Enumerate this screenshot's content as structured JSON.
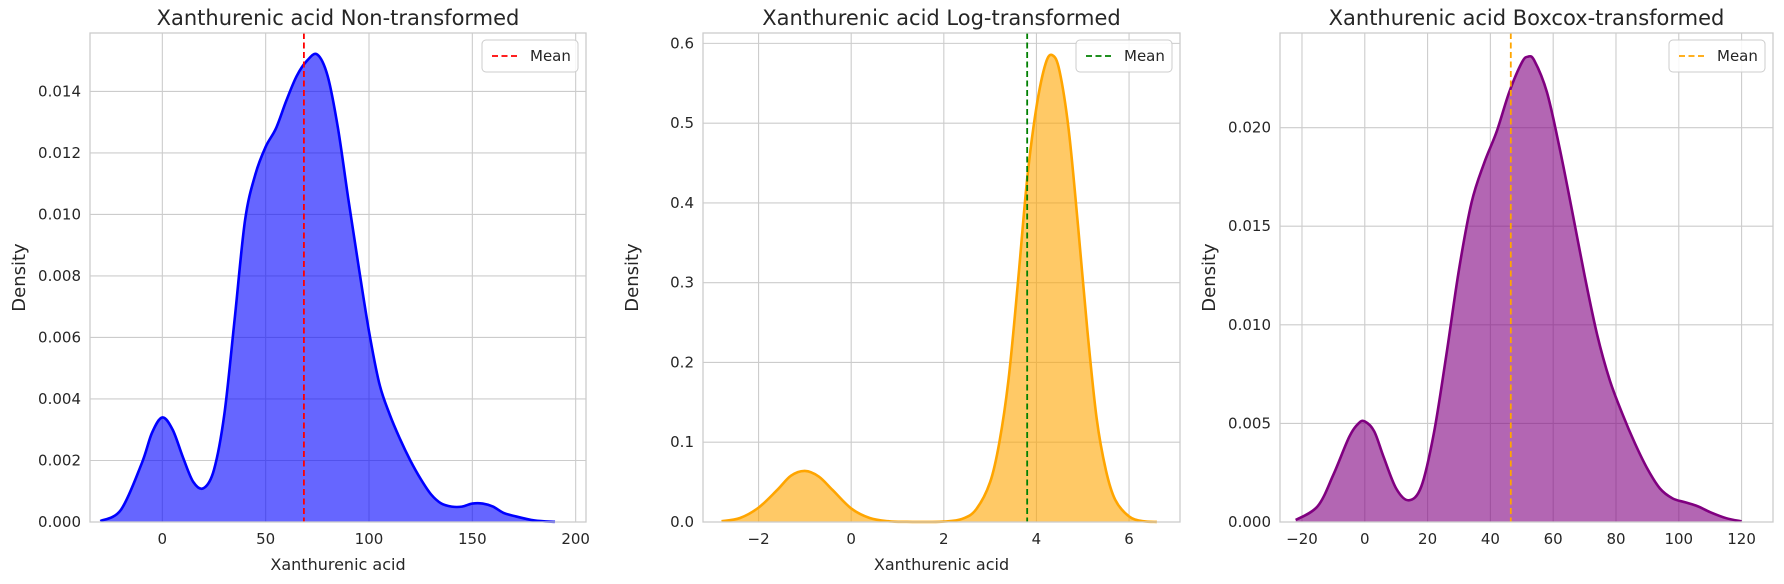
{
  "chart_data": [
    {
      "type": "area",
      "title": "Xanthurenic acid Non-transformed",
      "xlabel": "Xanthurenic acid",
      "ylabel": "Density",
      "xlim": [
        -35,
        205
      ],
      "ylim": [
        0,
        0.0159
      ],
      "xticks": [
        0,
        50,
        100,
        150,
        200
      ],
      "xtick_labels": [
        "0",
        "50",
        "100",
        "150",
        "200"
      ],
      "yticks": [
        0,
        0.002,
        0.004,
        0.006,
        0.008,
        0.01,
        0.012,
        0.014
      ],
      "ytick_labels": [
        "0.000",
        "0.002",
        "0.004",
        "0.006",
        "0.008",
        "0.010",
        "0.012",
        "0.014"
      ],
      "grid": true,
      "legend_position": "top-right",
      "series": [
        {
          "name": "",
          "color": "#0000ff",
          "fill_color": "#0000ff",
          "fill_opacity": 0.6,
          "x": [
            -30,
            -20,
            -10,
            -5,
            0,
            5,
            10,
            15,
            20,
            25,
            30,
            35,
            40,
            45,
            50,
            55,
            60,
            65,
            70,
            75,
            80,
            85,
            90,
            95,
            100,
            105,
            110,
            115,
            120,
            125,
            130,
            135,
            140,
            145,
            150,
            155,
            160,
            165,
            170,
            180,
            190
          ],
          "y": [
            3e-05,
            0.0004,
            0.0019,
            0.0029,
            0.0034,
            0.003,
            0.0021,
            0.0013,
            0.0011,
            0.0017,
            0.0035,
            0.0066,
            0.0098,
            0.0113,
            0.0122,
            0.0128,
            0.0137,
            0.0145,
            0.015,
            0.0152,
            0.0145,
            0.0128,
            0.0105,
            0.0083,
            0.0062,
            0.0045,
            0.0035,
            0.0027,
            0.002,
            0.0014,
            0.0009,
            0.0006,
            0.0005,
            0.0005,
            0.0006,
            0.0006,
            0.0005,
            0.0003,
            0.0002,
            5e-05,
            5e-06
          ]
        }
      ],
      "mean": {
        "label": "Mean",
        "value": 68.5,
        "color": "#ff0000"
      }
    },
    {
      "type": "area",
      "title": "Xanthurenic acid Log-transformed",
      "xlabel": "Xanthurenic acid",
      "ylabel": "Density",
      "xlim": [
        -3.2,
        7.1
      ],
      "ylim": [
        0,
        0.613
      ],
      "xticks": [
        -2,
        0,
        2,
        4,
        6
      ],
      "xtick_labels": [
        "−2",
        "0",
        "2",
        "4",
        "6"
      ],
      "yticks": [
        0,
        0.1,
        0.2,
        0.3,
        0.4,
        0.5,
        0.6
      ],
      "ytick_labels": [
        "0.0",
        "0.1",
        "0.2",
        "0.3",
        "0.4",
        "0.5",
        "0.6"
      ],
      "grid": true,
      "legend_position": "top-right",
      "series": [
        {
          "name": "",
          "color": "#ffa500",
          "fill_color": "#ffa500",
          "fill_opacity": 0.6,
          "x": [
            -2.8,
            -2.4,
            -2.0,
            -1.6,
            -1.3,
            -1.0,
            -0.7,
            -0.4,
            0.0,
            0.4,
            0.8,
            1.2,
            1.6,
            2.0,
            2.4,
            2.7,
            3.0,
            3.2,
            3.4,
            3.6,
            3.8,
            4.0,
            4.2,
            4.35,
            4.5,
            4.7,
            4.9,
            5.1,
            5.3,
            5.5,
            5.7,
            6.0,
            6.3,
            6.6
          ],
          "y": [
            0.001,
            0.005,
            0.018,
            0.04,
            0.058,
            0.064,
            0.057,
            0.04,
            0.017,
            0.005,
            0.001,
            0.0002,
            0.0001,
            0.0005,
            0.004,
            0.016,
            0.05,
            0.1,
            0.18,
            0.3,
            0.43,
            0.52,
            0.575,
            0.585,
            0.565,
            0.49,
            0.37,
            0.24,
            0.13,
            0.065,
            0.028,
            0.007,
            0.001,
            0.0001
          ]
        }
      ],
      "mean": {
        "label": "Mean",
        "value": 3.8,
        "color": "#008000"
      }
    },
    {
      "type": "area",
      "title": "Xanthurenic acid Boxcox-transformed",
      "xlabel": "",
      "ylabel": "Density",
      "xlim": [
        -27,
        130
      ],
      "ylim": [
        0,
        0.0248
      ],
      "xticks": [
        -20,
        0,
        20,
        40,
        60,
        80,
        100,
        120
      ],
      "xtick_labels": [
        "−20",
        "0",
        "20",
        "40",
        "60",
        "80",
        "100",
        "120"
      ],
      "yticks": [
        0,
        0.005,
        0.01,
        0.015,
        0.02
      ],
      "ytick_labels": [
        "0.000",
        "0.005",
        "0.010",
        "0.015",
        "0.020"
      ],
      "grid": true,
      "legend_position": "top-right",
      "series": [
        {
          "name": "",
          "color": "#800080",
          "fill_color": "#800080",
          "fill_opacity": 0.6,
          "x": [
            -22,
            -15,
            -10,
            -5,
            -2,
            0,
            3,
            6,
            10,
            14,
            18,
            22,
            26,
            30,
            34,
            38,
            42,
            46,
            50,
            52,
            54,
            58,
            62,
            66,
            70,
            74,
            78,
            82,
            86,
            90,
            94,
            98,
            102,
            106,
            110,
            115,
            120
          ],
          "y": [
            0.0001,
            0.0008,
            0.0024,
            0.0043,
            0.005,
            0.0051,
            0.0046,
            0.0033,
            0.0017,
            0.0011,
            0.0018,
            0.0045,
            0.0085,
            0.0128,
            0.0162,
            0.0182,
            0.0198,
            0.0218,
            0.0233,
            0.0236,
            0.0234,
            0.0218,
            0.019,
            0.0158,
            0.0125,
            0.0095,
            0.0072,
            0.0055,
            0.004,
            0.0027,
            0.0017,
            0.0012,
            0.001,
            0.0008,
            0.0005,
            0.0002,
            3e-05
          ]
        }
      ],
      "mean": {
        "label": "Mean",
        "value": 46.5,
        "color": "#ffa500"
      }
    }
  ]
}
